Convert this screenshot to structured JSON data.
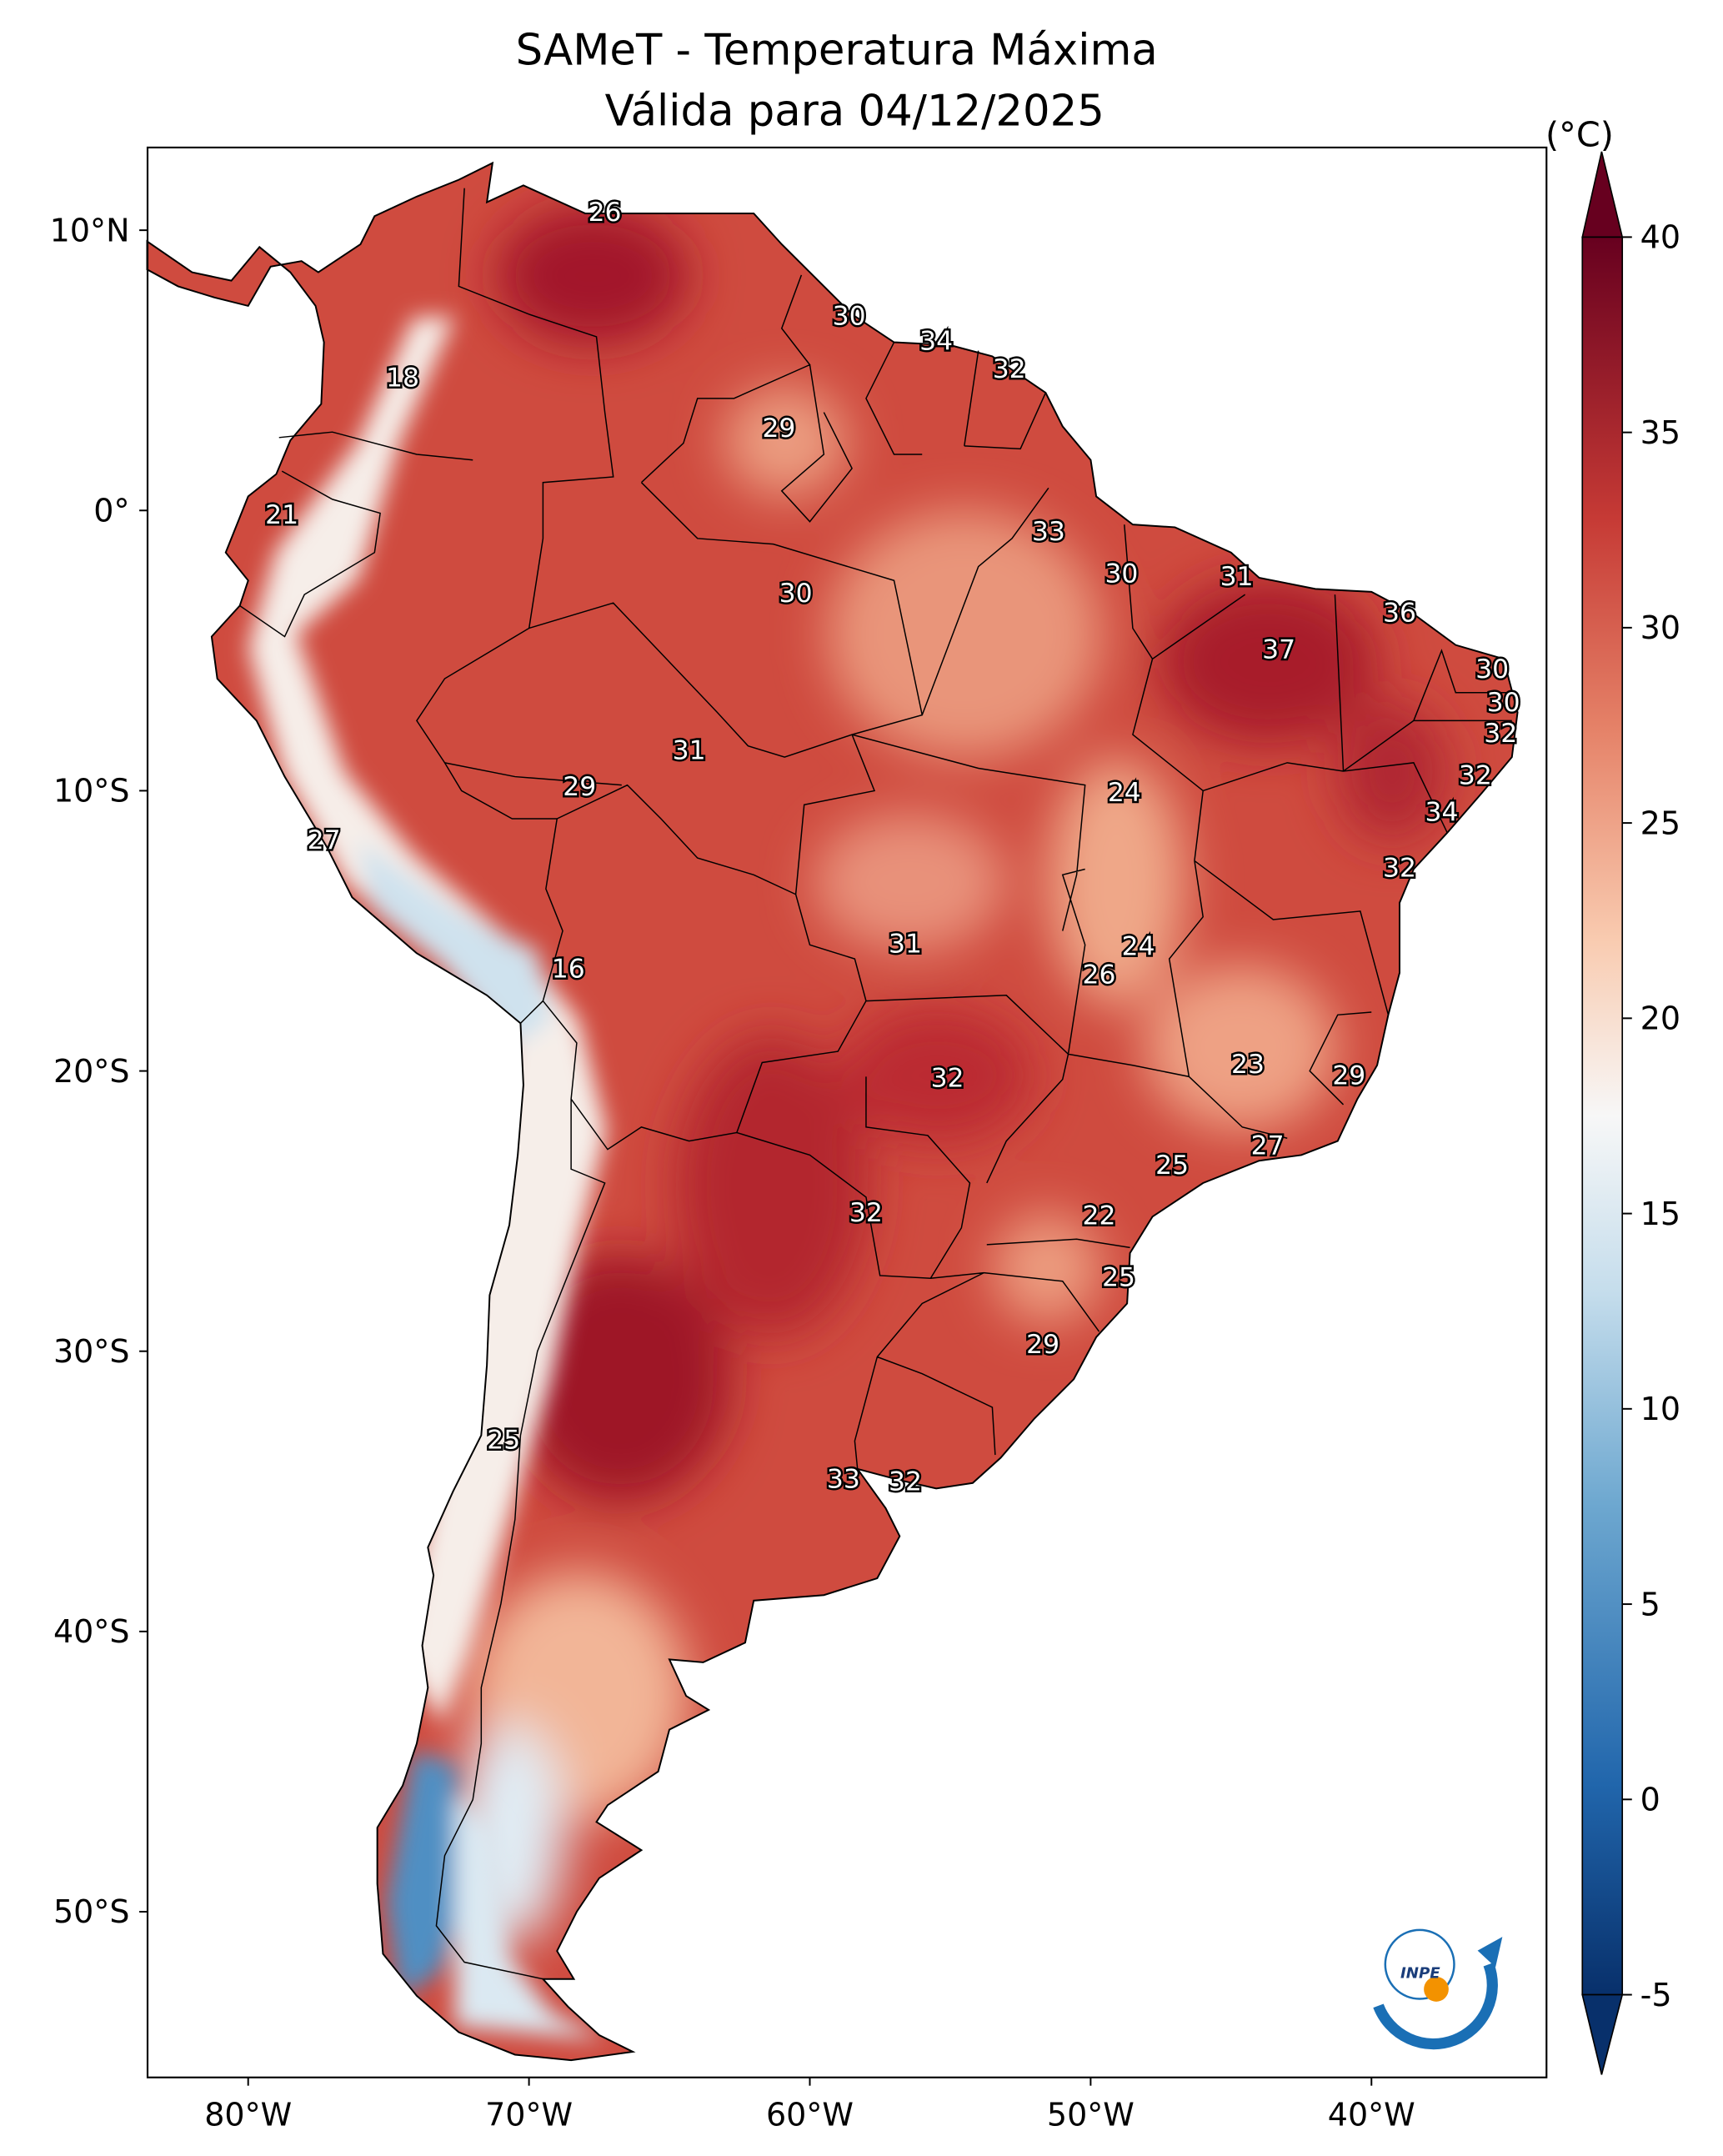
{
  "title": {
    "line1": "SAMeT - Temperatura Máxima",
    "line2": "Válida para 04/12/2025"
  },
  "colorbar": {
    "unit_label": "(°C)",
    "ticks": [
      40,
      35,
      30,
      25,
      20,
      15,
      10,
      5,
      0,
      -5
    ],
    "tick_labels": [
      "40",
      "35",
      "30",
      "25",
      "20",
      "15",
      "10",
      "5",
      "0",
      "-5"
    ],
    "range": [
      -5,
      40
    ],
    "colormap": "RdBu_r",
    "extend": "both"
  },
  "axes": {
    "lon_ticks": [
      -80,
      -70,
      -60,
      -50,
      -40
    ],
    "lon_labels": [
      "80°W",
      "70°W",
      "60°W",
      "50°W",
      "40°W"
    ],
    "lat_ticks": [
      10,
      0,
      -10,
      -20,
      -30,
      -40,
      -50
    ],
    "lat_labels": [
      "10°N",
      "0°",
      "10°S",
      "20°S",
      "30°S",
      "40°S",
      "50°S"
    ],
    "lon_range": [
      -83.6,
      -33.8
    ],
    "lat_range": [
      -55.9,
      12.95
    ]
  },
  "logo": {
    "text": "INPE",
    "colors": [
      "#1a6fb5",
      "#f39200"
    ]
  },
  "labels": [
    {
      "v": "26",
      "lon": -67.3,
      "lat": 10.6
    },
    {
      "v": "18",
      "lon": -74.5,
      "lat": 4.7
    },
    {
      "v": "30",
      "lon": -58.6,
      "lat": 6.9
    },
    {
      "v": "34",
      "lon": -55.5,
      "lat": 6.0
    },
    {
      "v": "32",
      "lon": -52.9,
      "lat": 5.0
    },
    {
      "v": "29",
      "lon": -61.1,
      "lat": 2.9
    },
    {
      "v": "21",
      "lon": -78.8,
      "lat": -0.2
    },
    {
      "v": "33",
      "lon": -51.5,
      "lat": -0.8
    },
    {
      "v": "30",
      "lon": -48.9,
      "lat": -2.3
    },
    {
      "v": "30",
      "lon": -60.5,
      "lat": -3.0
    },
    {
      "v": "31",
      "lon": -44.8,
      "lat": -2.4
    },
    {
      "v": "36",
      "lon": -39.0,
      "lat": -3.7
    },
    {
      "v": "37",
      "lon": -43.3,
      "lat": -5.0
    },
    {
      "v": "30",
      "lon": -35.7,
      "lat": -5.7
    },
    {
      "v": "30",
      "lon": -35.3,
      "lat": -6.9
    },
    {
      "v": "32",
      "lon": -35.4,
      "lat": -8.0
    },
    {
      "v": "31",
      "lon": -64.3,
      "lat": -8.6
    },
    {
      "v": "32",
      "lon": -36.3,
      "lat": -9.5
    },
    {
      "v": "29",
      "lon": -68.2,
      "lat": -9.9
    },
    {
      "v": "24",
      "lon": -48.8,
      "lat": -10.1
    },
    {
      "v": "34",
      "lon": -37.5,
      "lat": -10.8
    },
    {
      "v": "27",
      "lon": -77.3,
      "lat": -11.8
    },
    {
      "v": "32",
      "lon": -39.0,
      "lat": -12.8
    },
    {
      "v": "31",
      "lon": -56.6,
      "lat": -15.5
    },
    {
      "v": "24",
      "lon": -48.3,
      "lat": -15.6
    },
    {
      "v": "26",
      "lon": -49.7,
      "lat": -16.6
    },
    {
      "v": "16",
      "lon": -68.6,
      "lat": -16.4
    },
    {
      "v": "23",
      "lon": -44.4,
      "lat": -19.8
    },
    {
      "v": "29",
      "lon": -40.8,
      "lat": -20.2
    },
    {
      "v": "32",
      "lon": -55.1,
      "lat": -20.3
    },
    {
      "v": "27",
      "lon": -43.7,
      "lat": -22.7
    },
    {
      "v": "25",
      "lon": -47.1,
      "lat": -23.4
    },
    {
      "v": "32",
      "lon": -58.0,
      "lat": -25.1
    },
    {
      "v": "22",
      "lon": -49.7,
      "lat": -25.2
    },
    {
      "v": "25",
      "lon": -49.0,
      "lat": -27.4
    },
    {
      "v": "29",
      "lon": -51.7,
      "lat": -29.8
    },
    {
      "v": "25",
      "lon": -70.9,
      "lat": -33.2
    },
    {
      "v": "33",
      "lon": -58.8,
      "lat": -34.6
    },
    {
      "v": "32",
      "lon": -56.6,
      "lat": -34.7
    }
  ]
}
